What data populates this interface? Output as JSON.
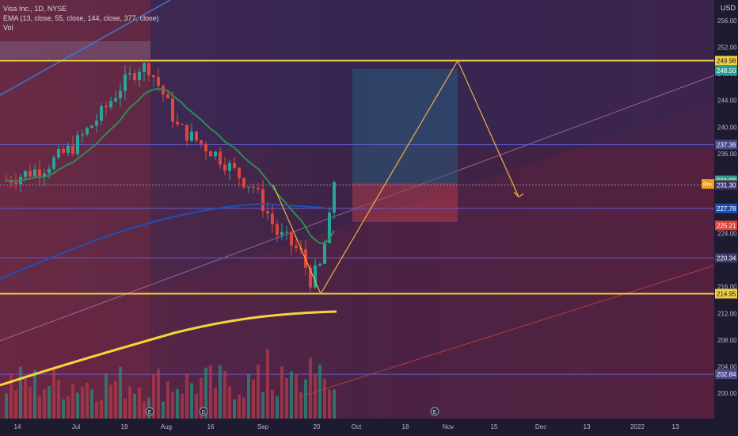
{
  "legend": {
    "title": "Visa Inc., 1D, NYSE",
    "ema": "EMA (13, close, 55, close, 144, close, 377, close)",
    "vol": "Vol"
  },
  "currency": "USD",
  "chart_data": {
    "type": "candlestick",
    "price_axis_ticks": [
      256.0,
      252.0,
      248.0,
      244.0,
      240.0,
      236.0,
      232.0,
      228.0,
      224.0,
      220.0,
      216.0,
      212.0,
      208.0,
      204.0,
      200.0
    ],
    "price_ylim": [
      197.0,
      258.0
    ],
    "time_axis_labels": [
      "14",
      "Jul",
      "19",
      "Aug",
      "16",
      "Sep",
      "20",
      "Oct",
      "18",
      "Nov",
      "15",
      "Dec",
      "13",
      "2022",
      "13"
    ],
    "price_labels": [
      {
        "text": "249.98",
        "color": "#f0d040",
        "text_color": "#1e1a30"
      },
      {
        "text": "248.50",
        "color": "#2a9d8f",
        "text_color": "#ffffff"
      },
      {
        "text": "237.36",
        "color": "#4a4a8a",
        "text_color": "#ffffff"
      },
      {
        "text": "231.99",
        "color": "#2a9d8f",
        "text_color": "#ffffff"
      },
      {
        "text": "231.45",
        "color": "#f0a020",
        "text_color": "#ffffff",
        "prefix": "Pre"
      },
      {
        "text": "231.30",
        "color": "#3a3a6a",
        "text_color": "#ffffff"
      },
      {
        "text": "227.78",
        "color": "#1e4fb8",
        "text_color": "#ffffff"
      },
      {
        "text": "225.21",
        "color": "#e0443c",
        "text_color": "#ffffff"
      },
      {
        "text": "220.34",
        "color": "#3a3a6a",
        "text_color": "#ffffff"
      },
      {
        "text": "214.95",
        "color": "#f0d040",
        "text_color": "#1e1a30"
      },
      {
        "text": "202.84",
        "color": "#4a4a8a",
        "text_color": "#ffffff"
      }
    ],
    "horizontal_levels": [
      {
        "value": 249.98,
        "color": "#f0d040",
        "width": "thick"
      },
      {
        "value": 237.36,
        "color": "#6a5aca",
        "width": "thin"
      },
      {
        "value": 231.3,
        "color": "#9a8aa0",
        "width": "dotted"
      },
      {
        "value": 227.78,
        "color": "#6a5aca",
        "width": "thin"
      },
      {
        "value": 220.34,
        "color": "#6a5aca",
        "width": "thin"
      },
      {
        "value": 214.95,
        "color": "#f0d040",
        "width": "thick"
      },
      {
        "value": 202.84,
        "color": "#6a5aca",
        "width": "thin"
      }
    ],
    "projection_path": [
      231.3,
      214.95,
      249.98,
      229.5
    ],
    "event_markers": [
      "E",
      "D",
      "E"
    ],
    "colors": {
      "bull": "#26a69a",
      "bear": "#e0443c",
      "ema13": "#2e8b57",
      "ema144": "#1e4fb8",
      "ema377": "#f5d33a",
      "projection": "#f0b040"
    }
  }
}
